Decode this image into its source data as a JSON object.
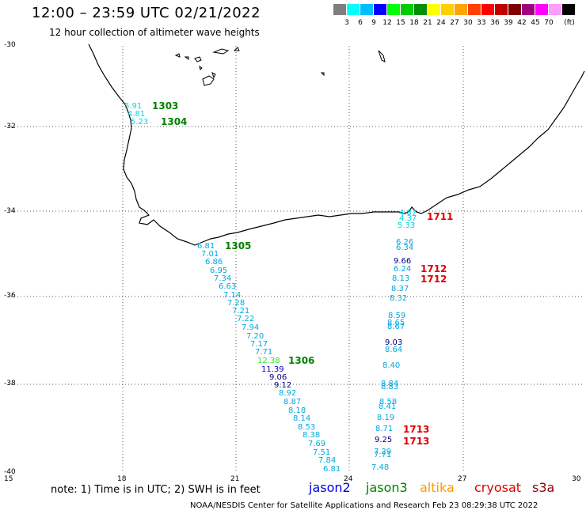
{
  "title": "12:00 – 23:59 UTC 02/21/2022",
  "subtitle": "12 hour collection of altimeter wave heights",
  "colorbar": {
    "colors": [
      "#7f7f7f",
      "#00ffff",
      "#00bfff",
      "#0000ff",
      "#00ff00",
      "#00cd00",
      "#009000",
      "#ffff00",
      "#ffd000",
      "#ffa500",
      "#ff4000",
      "#ff0000",
      "#c00000",
      "#800000",
      "#a00080",
      "#ff00ff",
      "#ff9cff",
      "#000000"
    ],
    "labels": [
      "3",
      "6",
      "9",
      "12",
      "15",
      "18",
      "21",
      "24",
      "27",
      "30",
      "33",
      "36",
      "39",
      "42",
      "45",
      "70"
    ],
    "unit": "(ft)"
  },
  "axes": {
    "lat_labels": [
      "-30",
      "-32",
      "-34",
      "-36",
      "-38",
      "-40"
    ],
    "lon_labels": [
      "15",
      "18",
      "21",
      "24",
      "27",
      "30"
    ]
  },
  "passes": [
    {
      "label": "1303",
      "color": "#008000"
    },
    {
      "label": "1304",
      "color": "#008000"
    },
    {
      "label": "1305",
      "color": "#008000"
    },
    {
      "label": "1306",
      "color": "#008000"
    },
    {
      "label": "1711",
      "color": "#e00000"
    },
    {
      "label": "1712",
      "color": "#e00000"
    },
    {
      "label": "1712",
      "color": "#e00000"
    },
    {
      "label": "1713",
      "color": "#e00000"
    },
    {
      "label": "1713",
      "color": "#e00000"
    }
  ],
  "observations": [
    {
      "v": "5.91",
      "c": "#00d6e0"
    },
    {
      "v": "4.81",
      "c": "#00d6e0"
    },
    {
      "v": "5.23",
      "c": "#00d6e0"
    },
    {
      "v": "6.81",
      "c": "#00a8e0"
    },
    {
      "v": "7.01",
      "c": "#00a8e0"
    },
    {
      "v": "6.86",
      "c": "#00a8e0"
    },
    {
      "v": "6.95",
      "c": "#00a8e0"
    },
    {
      "v": "7.34",
      "c": "#00a8e0"
    },
    {
      "v": "6.63",
      "c": "#00a8e0"
    },
    {
      "v": "7.14",
      "c": "#00a8e0"
    },
    {
      "v": "7.28",
      "c": "#00a8e0"
    },
    {
      "v": "7.21",
      "c": "#00a8e0"
    },
    {
      "v": "7.22",
      "c": "#00a8e0"
    },
    {
      "v": "7.94",
      "c": "#00a8e0"
    },
    {
      "v": "7.20",
      "c": "#00a8e0"
    },
    {
      "v": "7.17",
      "c": "#00a8e0"
    },
    {
      "v": "7.71",
      "c": "#00a8e0"
    },
    {
      "v": "12.38",
      "c": "#33e033"
    },
    {
      "v": "11.39",
      "c": "#0000d0"
    },
    {
      "v": "9.06",
      "c": "#000080"
    },
    {
      "v": "9.12",
      "c": "#000080"
    },
    {
      "v": "8.92",
      "c": "#00a8e0"
    },
    {
      "v": "8.87",
      "c": "#00a8e0"
    },
    {
      "v": "8.18",
      "c": "#00a8e0"
    },
    {
      "v": "8.14",
      "c": "#00a8e0"
    },
    {
      "v": "8.53",
      "c": "#00a8e0"
    },
    {
      "v": "8.38",
      "c": "#00a8e0"
    },
    {
      "v": "7.69",
      "c": "#00a8e0"
    },
    {
      "v": "7.51",
      "c": "#00a8e0"
    },
    {
      "v": "7.84",
      "c": "#00a8e0"
    },
    {
      "v": "6.81",
      "c": "#00a8e0"
    },
    {
      "v": "4.87",
      "c": "#00d6e0"
    },
    {
      "v": "4.37",
      "c": "#00d6e0"
    },
    {
      "v": "5.33",
      "c": "#00d6e0"
    },
    {
      "v": "6.26",
      "c": "#00a8e0"
    },
    {
      "v": "6.34",
      "c": "#00a8e0"
    },
    {
      "v": "9.66",
      "c": "#000080"
    },
    {
      "v": "6.24",
      "c": "#00a8e0"
    },
    {
      "v": "8.13",
      "c": "#00a8e0"
    },
    {
      "v": "8.37",
      "c": "#00a8e0"
    },
    {
      "v": "8.32",
      "c": "#00a8e0"
    },
    {
      "v": "8.59",
      "c": "#00a8e0"
    },
    {
      "v": "8.65",
      "c": "#00a8e0"
    },
    {
      "v": "8.67",
      "c": "#00a8e0"
    },
    {
      "v": "9.03",
      "c": "#000080"
    },
    {
      "v": "8.64",
      "c": "#00a8e0"
    },
    {
      "v": "8.40",
      "c": "#00a8e0"
    },
    {
      "v": "8.84",
      "c": "#00a8e0"
    },
    {
      "v": "8.83",
      "c": "#00a8e0"
    },
    {
      "v": "8.58",
      "c": "#00a8e0"
    },
    {
      "v": "8.41",
      "c": "#00a8e0"
    },
    {
      "v": "8.19",
      "c": "#00a8e0"
    },
    {
      "v": "8.71",
      "c": "#00a8e0"
    },
    {
      "v": "9.25",
      "c": "#000080"
    },
    {
      "v": "7.29",
      "c": "#00a8e0"
    },
    {
      "v": "7.71",
      "c": "#00a8e0"
    },
    {
      "v": "7.48",
      "c": "#00a8e0"
    }
  ],
  "note": "note:  1) Time is in UTC;  2) SWH is in feet",
  "legend": [
    {
      "name": "jason2",
      "color": "#0000dd"
    },
    {
      "name": "jason3",
      "color": "#008000"
    },
    {
      "name": "altika",
      "color": "#ff9900"
    },
    {
      "name": "cryosat",
      "color": "#e00000"
    },
    {
      "name": "s3a",
      "color": "#900000"
    }
  ],
  "footer": "NOAA/NESDIS Center for Satellite Applications and Research     Feb 23 08:29:38 UTC 2022"
}
